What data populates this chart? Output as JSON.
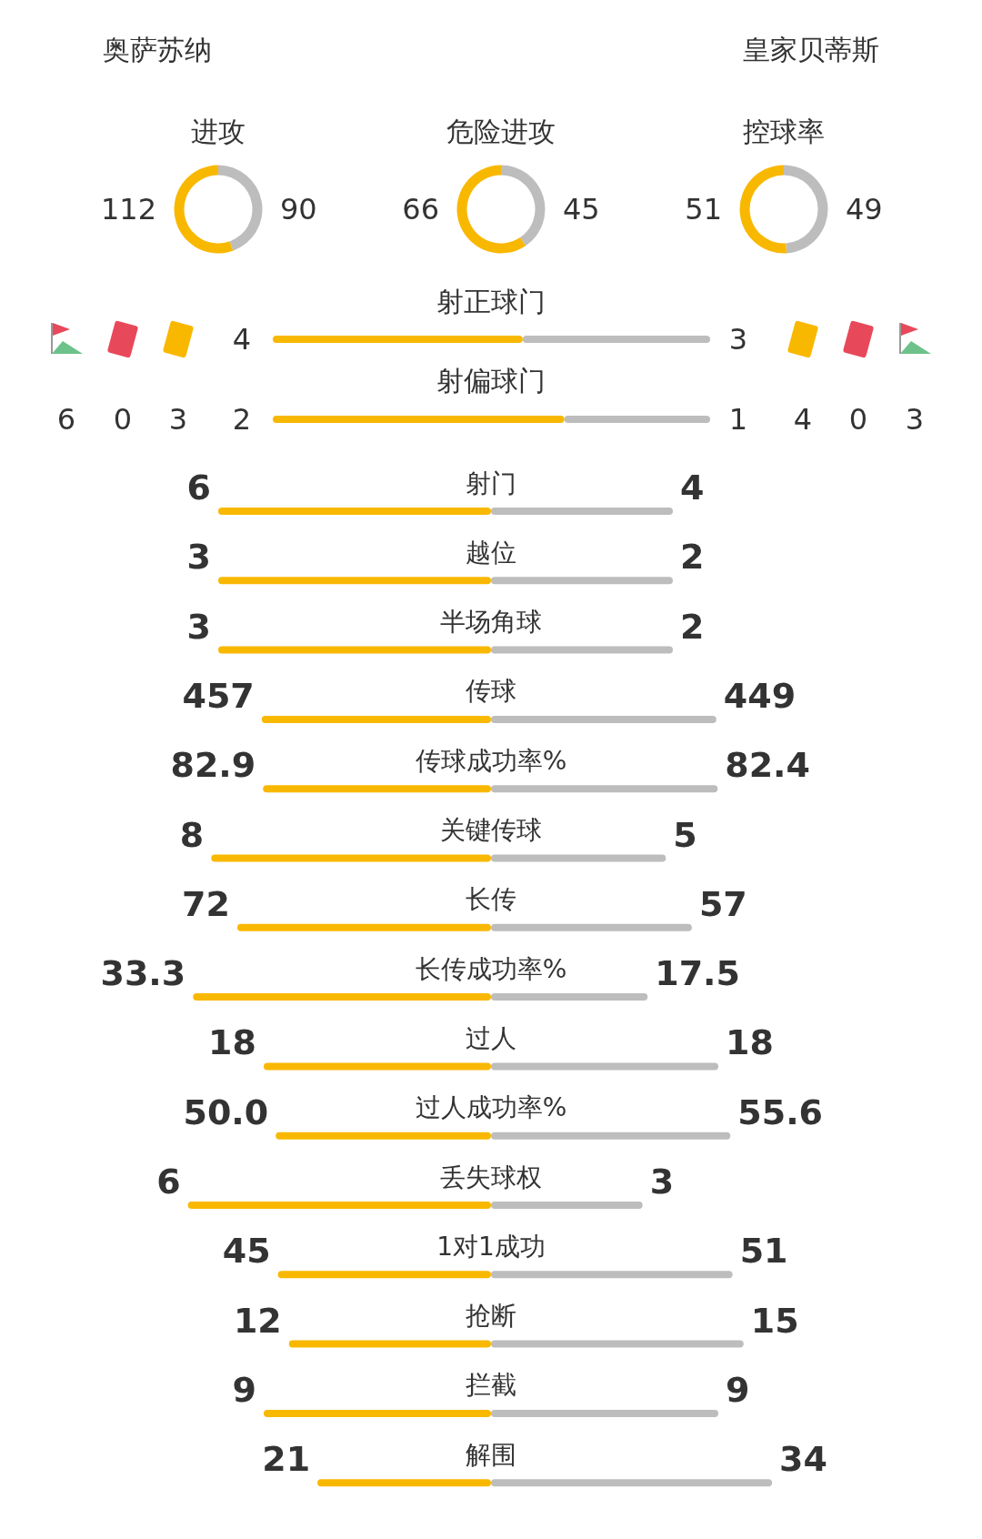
{
  "chart_data": [
    {
      "type": "other",
      "annotations": [
        "奥萨苏纳",
        "皇家贝蒂斯"
      ]
    },
    {
      "type": "donut",
      "title": "进攻",
      "categories": [
        null,
        null
      ],
      "values": [
        112,
        90
      ],
      "colors": [
        "#f9b800",
        "#bdbdbd"
      ],
      "data_labels": true
    },
    {
      "type": "donut",
      "title": "危险进攻",
      "categories": [
        null,
        null
      ],
      "values": [
        66,
        45
      ],
      "colors": [
        "#f9b800",
        "#bdbdbd"
      ],
      "data_labels": true
    },
    {
      "type": "donut",
      "title": "控球率",
      "categories": [
        null,
        null
      ],
      "values": [
        51,
        49
      ],
      "colors": [
        "#f9b800",
        "#bdbdbd"
      ],
      "data_labels": true
    },
    {
      "type": "bar",
      "orientation": "horizontal",
      "stacked": true,
      "data_labels": true,
      "categories": [
        "射正球门"
      ],
      "series": [
        {
          "color": "#f9b800",
          "values": [
            4
          ]
        },
        {
          "color": "#bdbdbd",
          "values": [
            3
          ]
        }
      ]
    },
    {
      "type": "bar",
      "orientation": "horizontal",
      "stacked": true,
      "data_labels": true,
      "categories": [
        "射偏球门"
      ],
      "series": [
        {
          "color": "#f9b800",
          "values": [
            2
          ]
        },
        {
          "color": "#bdbdbd",
          "values": [
            1
          ]
        }
      ]
    },
    {
      "type": "other",
      "annotations": [
        "6",
        "0",
        "3",
        "4",
        "0",
        "3"
      ]
    },
    {
      "type": "bar",
      "orientation": "horizontal",
      "stacked": true,
      "data_labels": true,
      "categories": [
        "射门"
      ],
      "series": [
        {
          "color": "#f9b800",
          "values": [
            6
          ]
        },
        {
          "color": "#bdbdbd",
          "values": [
            4
          ]
        }
      ]
    },
    {
      "type": "bar",
      "orientation": "horizontal",
      "stacked": true,
      "data_labels": true,
      "categories": [
        "越位"
      ],
      "series": [
        {
          "color": "#f9b800",
          "values": [
            3
          ]
        },
        {
          "color": "#bdbdbd",
          "values": [
            2
          ]
        }
      ]
    },
    {
      "type": "bar",
      "orientation": "horizontal",
      "stacked": true,
      "data_labels": true,
      "categories": [
        "半场角球"
      ],
      "series": [
        {
          "color": "#f9b800",
          "values": [
            3
          ]
        },
        {
          "color": "#bdbdbd",
          "values": [
            2
          ]
        }
      ]
    },
    {
      "type": "bar",
      "orientation": "horizontal",
      "stacked": true,
      "data_labels": true,
      "categories": [
        "传球"
      ],
      "series": [
        {
          "color": "#f9b800",
          "values": [
            457
          ]
        },
        {
          "color": "#bdbdbd",
          "values": [
            449
          ]
        }
      ]
    },
    {
      "type": "bar",
      "orientation": "horizontal",
      "stacked": true,
      "data_labels": true,
      "categories": [
        "传球成功率%"
      ],
      "series": [
        {
          "color": "#f9b800",
          "values": [
            82.9
          ]
        },
        {
          "color": "#bdbdbd",
          "values": [
            82.4
          ]
        }
      ]
    },
    {
      "type": "bar",
      "orientation": "horizontal",
      "stacked": true,
      "data_labels": true,
      "categories": [
        "关键传球"
      ],
      "series": [
        {
          "color": "#f9b800",
          "values": [
            8
          ]
        },
        {
          "color": "#bdbdbd",
          "values": [
            5
          ]
        }
      ]
    },
    {
      "type": "bar",
      "orientation": "horizontal",
      "stacked": true,
      "data_labels": true,
      "categories": [
        "长传"
      ],
      "series": [
        {
          "color": "#f9b800",
          "values": [
            72
          ]
        },
        {
          "color": "#bdbdbd",
          "values": [
            57
          ]
        }
      ]
    },
    {
      "type": "bar",
      "orientation": "horizontal",
      "stacked": true,
      "data_labels": true,
      "categories": [
        "长传成功率%"
      ],
      "series": [
        {
          "color": "#f9b800",
          "values": [
            33.3
          ]
        },
        {
          "color": "#bdbdbd",
          "values": [
            17.5
          ]
        }
      ]
    },
    {
      "type": "bar",
      "orientation": "horizontal",
      "stacked": true,
      "data_labels": true,
      "categories": [
        "过人"
      ],
      "series": [
        {
          "color": "#f9b800",
          "values": [
            18
          ]
        },
        {
          "color": "#bdbdbd",
          "values": [
            18
          ]
        }
      ]
    },
    {
      "type": "bar",
      "orientation": "horizontal",
      "stacked": true,
      "categories": [
        "过人成功率%"
      ],
      "series": [
        {
          "color": "#f9b800",
          "values": [
            50.0
          ],
          "value_labels": [
            "50.0"
          ]
        },
        {
          "color": "#bdbdbd",
          "values": [
            55.6
          ],
          "value_labels": [
            "55.6"
          ]
        }
      ]
    },
    {
      "type": "bar",
      "orientation": "horizontal",
      "stacked": true,
      "data_labels": true,
      "categories": [
        "丢失球权"
      ],
      "series": [
        {
          "color": "#f9b800",
          "values": [
            6
          ]
        },
        {
          "color": "#bdbdbd",
          "values": [
            3
          ]
        }
      ]
    },
    {
      "type": "bar",
      "orientation": "horizontal",
      "stacked": true,
      "data_labels": true,
      "categories": [
        "1对1成功"
      ],
      "series": [
        {
          "color": "#f9b800",
          "values": [
            45
          ]
        },
        {
          "color": "#bdbdbd",
          "values": [
            51
          ]
        }
      ]
    },
    {
      "type": "bar",
      "orientation": "horizontal",
      "stacked": true,
      "data_labels": true,
      "categories": [
        "抢断"
      ],
      "series": [
        {
          "color": "#f9b800",
          "values": [
            12
          ]
        },
        {
          "color": "#bdbdbd",
          "values": [
            15
          ]
        }
      ]
    },
    {
      "type": "bar",
      "orientation": "horizontal",
      "stacked": true,
      "data_labels": true,
      "categories": [
        "拦截"
      ],
      "series": [
        {
          "color": "#f9b800",
          "values": [
            9
          ]
        },
        {
          "color": "#bdbdbd",
          "values": [
            9
          ]
        }
      ]
    },
    {
      "type": "bar",
      "orientation": "horizontal",
      "stacked": true,
      "data_labels": true,
      "categories": [
        "解围"
      ],
      "series": [
        {
          "color": "#f9b800",
          "values": [
            21
          ]
        },
        {
          "color": "#bdbdbd",
          "values": [
            34
          ]
        }
      ]
    }
  ]
}
